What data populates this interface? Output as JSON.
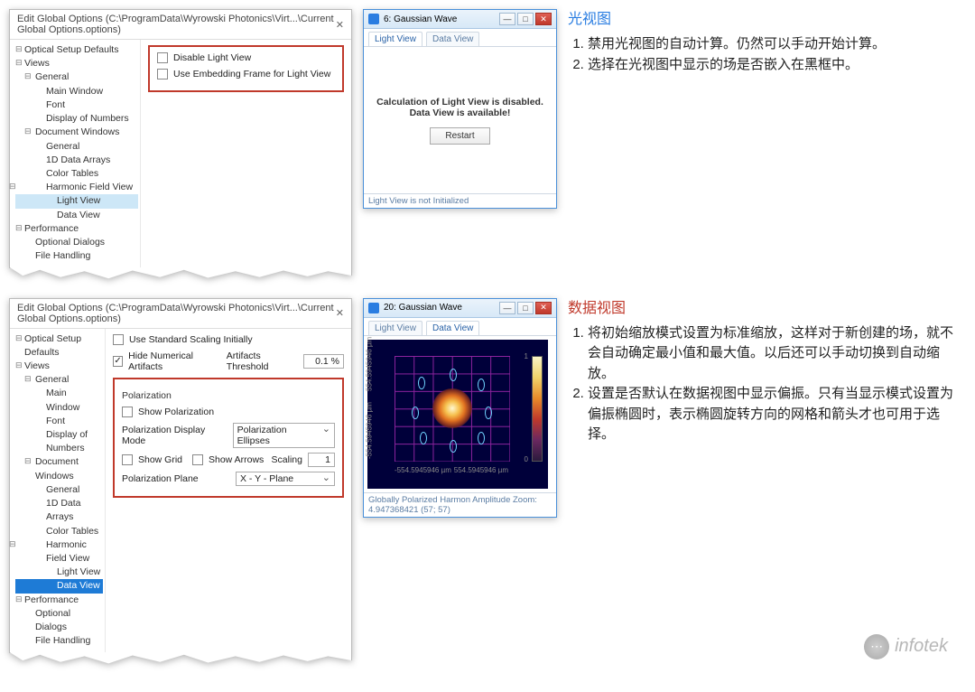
{
  "colors": {
    "accent_blue": "#2a7de1",
    "accent_red": "#c0392b",
    "win_border": "#4a90d9",
    "tree_hi_light": "#cde7f7",
    "tree_hi_dark": "#1e7bd6",
    "plot_bg": "#00003a",
    "grid_line": "#c832c8",
    "ellipse": "#6fd3ff"
  },
  "panel_title": "Edit Global Options (C:\\ProgramData\\Wyrowski Photonics\\Virt...\\Current Global Options.options)",
  "tree_top": {
    "items": [
      {
        "lvl": 0,
        "exp": true,
        "label": "Optical Setup Defaults"
      },
      {
        "lvl": 0,
        "exp": true,
        "label": "Views"
      },
      {
        "lvl": 1,
        "exp": true,
        "label": "General"
      },
      {
        "lvl": 2,
        "label": "Main Window"
      },
      {
        "lvl": 2,
        "label": "Font"
      },
      {
        "lvl": 2,
        "label": "Display of Numbers"
      },
      {
        "lvl": 1,
        "exp": true,
        "label": "Document Windows"
      },
      {
        "lvl": 2,
        "label": "General"
      },
      {
        "lvl": 2,
        "label": "1D Data Arrays"
      },
      {
        "lvl": 2,
        "label": "Color Tables"
      },
      {
        "lvl": 2,
        "exp": true,
        "label": "Harmonic Field View"
      },
      {
        "lvl": 3,
        "label": "Light View",
        "hi": "lt"
      },
      {
        "lvl": 3,
        "label": "Data View"
      },
      {
        "lvl": 0,
        "exp": true,
        "label": "Performance"
      },
      {
        "lvl": 1,
        "label": "Optional Dialogs"
      },
      {
        "lvl": 1,
        "label": "File Handling"
      }
    ]
  },
  "opts_top": {
    "disable_lv": "Disable Light View",
    "embed_frame": "Use Embedding Frame for Light View"
  },
  "tree_bot_hi_index": 12,
  "opts_bot": {
    "std_scale": "Use Standard Scaling Initially",
    "hide_artifacts": "Hide Numerical Artifacts",
    "thresh_label": "Artifacts Threshold",
    "thresh_val": "0.1 %",
    "group_title": "Polarization",
    "show_pol": "Show Polarization",
    "disp_mode_label": "Polarization Display Mode",
    "disp_mode_val": "Polarization Ellipses",
    "show_grid": "Show Grid",
    "show_arrows": "Show Arrows",
    "scaling_label": "Scaling",
    "scaling_val": "1",
    "plane_label": "Polarization Plane",
    "plane_val": "X - Y - Plane"
  },
  "win1": {
    "title": "6: Gaussian Wave",
    "tab1": "Light View",
    "tab2": "Data View",
    "msg1": "Calculation of Light View is disabled.",
    "msg2": "Data View is available!",
    "restart": "Restart",
    "status": "Light View is not Initialized"
  },
  "win2": {
    "title": "20: Gaussian Wave",
    "tab1": "Light View",
    "tab2": "Data View",
    "axis_x_min": "-554.5945946 µm",
    "axis_x_max": "554.5945946 µm",
    "axis_y_min": "-554.5945946 µm",
    "axis_y_max": "554.5945946 µm",
    "cbar_min": "0",
    "cbar_max": "1",
    "status": "Globally Polarized Harmon  Amplitude   Zoom: 4.947368421   (57; 57)"
  },
  "note1": {
    "title": "光视图",
    "items": [
      "禁用光视图的自动计算。仍然可以手动开始计算。",
      "选择在光视图中显示的场是否嵌入在黑框中。"
    ]
  },
  "note2": {
    "title": "数据视图",
    "items": [
      "将初始缩放模式设置为标准缩放，这样对于新创建的场，就不会自动确定最小值和最大值。以后还可以手动切换到自动缩放。",
      "设置是否默认在数据视图中显示偏振。只有当显示模式设置为偏振椭圆时，表示椭圆旋转方向的网格和箭头才也可用于选择。"
    ]
  },
  "watermark": "infotek"
}
